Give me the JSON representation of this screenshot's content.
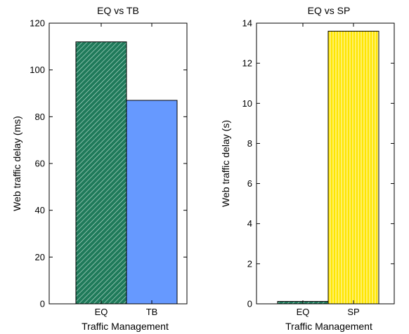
{
  "chart_data": [
    {
      "type": "bar",
      "title": "EQ vs TB",
      "xlabel": "Traffic Management",
      "ylabel": "Web traffic delay (ms)",
      "categories": [
        "EQ",
        "TB"
      ],
      "values": [
        112,
        87
      ],
      "ylim": [
        0,
        120
      ],
      "yticks": [
        0,
        20,
        40,
        60,
        80,
        100,
        120
      ],
      "bar_colors": [
        "#1f7a5a",
        "#6699ff"
      ],
      "bar_patterns": [
        "diagonal-hatch",
        "solid"
      ],
      "grid": false
    },
    {
      "type": "bar",
      "title": "EQ vs SP",
      "xlabel": "Traffic Management",
      "ylabel": "Web traffic delay (s)",
      "categories": [
        "EQ",
        "SP"
      ],
      "values": [
        0.12,
        13.6
      ],
      "ylim": [
        0,
        14
      ],
      "yticks": [
        0,
        2,
        4,
        6,
        8,
        10,
        12,
        14
      ],
      "bar_colors": [
        "#1f7a5a",
        "#ffe600"
      ],
      "bar_patterns": [
        "diagonal-hatch",
        "vertical-stripes"
      ],
      "grid": false
    }
  ]
}
